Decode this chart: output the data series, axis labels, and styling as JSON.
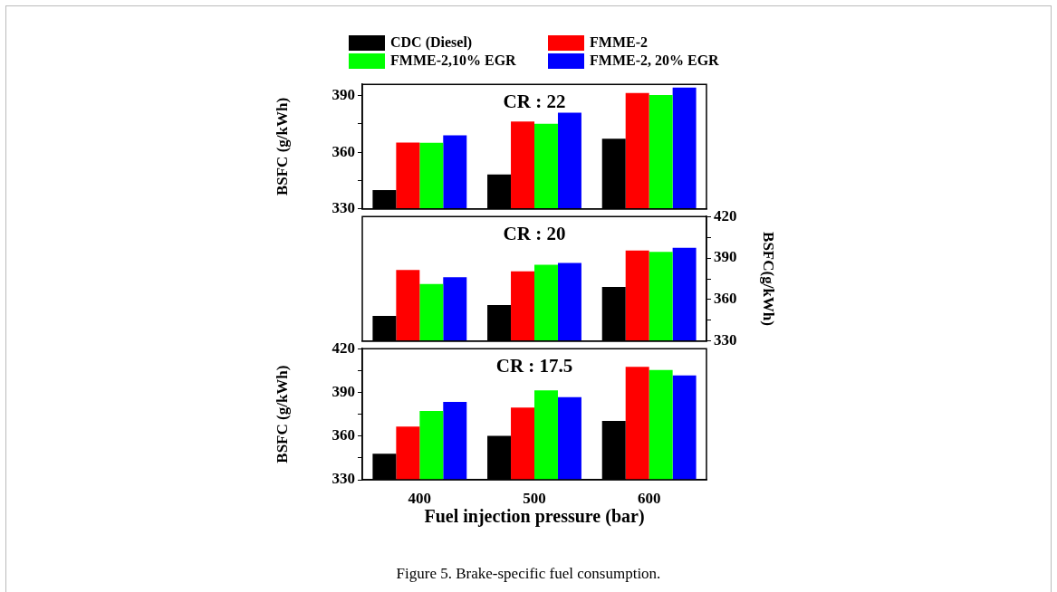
{
  "chart_data": [
    {
      "type": "bar",
      "title": "CR : 22",
      "ylabel": "BSFC (g/kWh)",
      "categories": [
        "400",
        "500",
        "600"
      ],
      "legend": "top",
      "tick_labels": "y",
      "ylim": [
        330,
        396
      ],
      "yticks": [
        330,
        {
          "value": 345,
          "label": null
        },
        360,
        {
          "value": 375,
          "label": null
        },
        390
      ],
      "series": [
        {
          "name": "CDC (Diesel)",
          "color": "#000000",
          "values": [
            340,
            348.3,
            367.2
          ]
        },
        {
          "name": "FMME-2",
          "color": "#ff0000",
          "values": [
            365.1,
            376.3,
            391.4
          ]
        },
        {
          "name": "FMME-2,10% EGR",
          "color": "#00ff00",
          "values": [
            365,
            375.1,
            390.4
          ]
        },
        {
          "name": "FMME-2, 20% EGR",
          "color": "#0000ff",
          "values": [
            369,
            381,
            394.3
          ]
        }
      ]
    },
    {
      "type": "bar",
      "title": "CR : 20",
      "y2label": "BSFC(g/kWh)",
      "categories": [
        "400",
        "500",
        "600"
      ],
      "tick_labels": "y",
      "y2lim": [
        330,
        420
      ],
      "y2ticks": [
        330,
        {
          "value": 345,
          "label": null
        },
        360,
        {
          "value": 375,
          "label": null
        },
        390,
        {
          "value": 405,
          "label": null
        },
        420
      ],
      "series": [
        {
          "color": "#000000",
          "axis": "y2",
          "values": [
            348.2,
            356,
            369.1
          ]
        },
        {
          "color": "#ff0000",
          "axis": "y2",
          "values": [
            381.3,
            380.4,
            395.5
          ]
        },
        {
          "color": "#00ff00",
          "axis": "y2",
          "values": [
            371.2,
            385.2,
            394.4
          ]
        },
        {
          "color": "#0000ff",
          "axis": "y2",
          "values": [
            376.2,
            386.5,
            397.4
          ]
        }
      ]
    },
    {
      "type": "bar",
      "title": "CR : 17.5",
      "ylabel": "BSFC (g/kWh)",
      "xlabel": "Fuel injection pressure (bar)",
      "categories": [
        "400",
        "500",
        "600"
      ],
      "ylim": [
        330,
        420
      ],
      "yticks": [
        330,
        {
          "value": 345,
          "label": null
        },
        360,
        {
          "value": 375,
          "label": null
        },
        390,
        {
          "value": 405,
          "label": null
        },
        420
      ],
      "annotations": [
        "Figure 5. Brake-specific fuel consumption."
      ],
      "series": [
        {
          "color": "#000000",
          "values": [
            347.8,
            360.2,
            370.4
          ]
        },
        {
          "color": "#ff0000",
          "values": [
            366.5,
            379.6,
            407.6
          ]
        },
        {
          "color": "#00ff00",
          "values": [
            377.3,
            391.4,
            405.3
          ]
        },
        {
          "color": "#0000ff",
          "values": [
            383.5,
            386.7,
            401.6
          ]
        }
      ]
    }
  ]
}
